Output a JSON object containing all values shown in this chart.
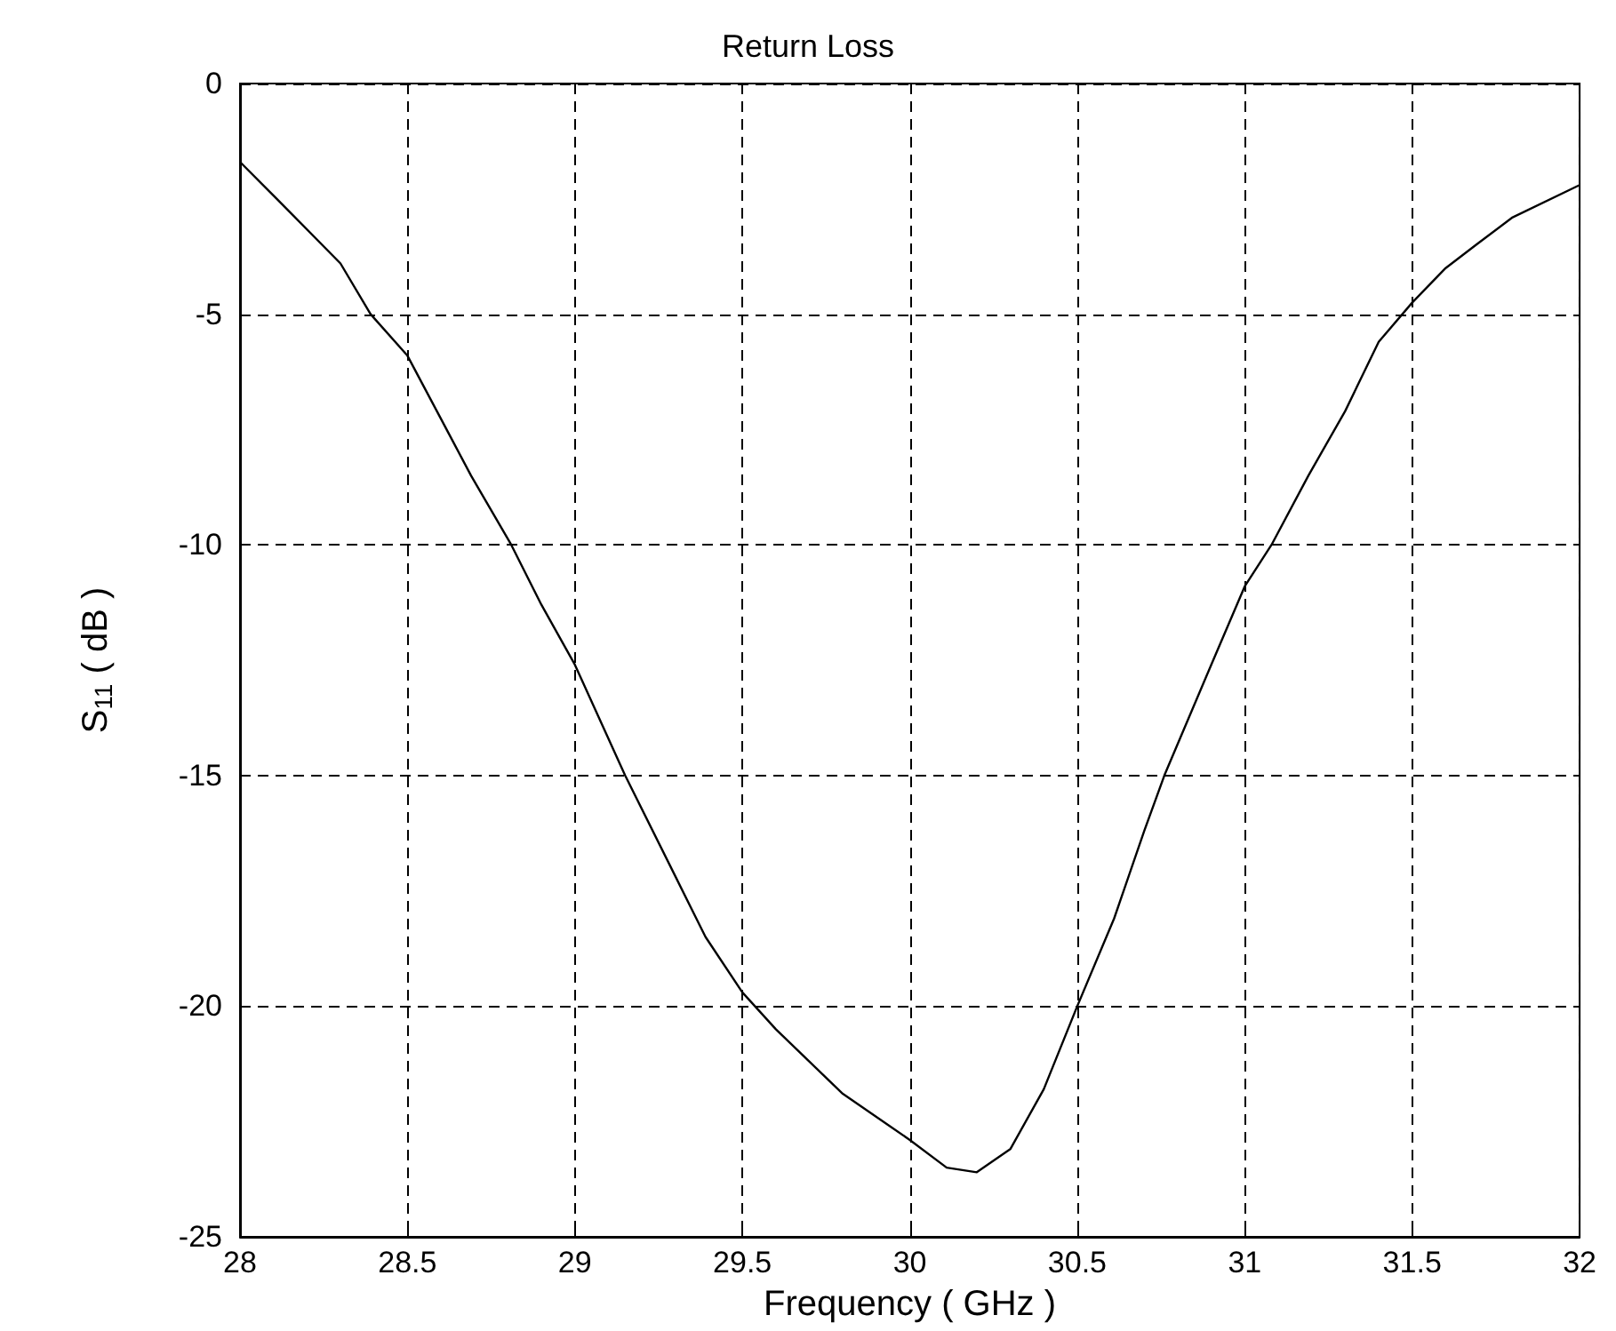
{
  "chart_data": {
    "type": "line",
    "title": "Return Loss",
    "xlabel": "Frequency ( GHz )",
    "ylabel": "S$_{11}$ ( dB )",
    "series": [
      {
        "color": "#000000",
        "x": [
          28.0,
          28.11,
          28.3,
          28.39,
          28.5,
          28.69,
          28.81,
          28.9,
          29.0,
          29.15,
          29.39,
          29.5,
          29.6,
          29.8,
          30.0,
          30.11,
          30.2,
          30.3,
          30.4,
          30.5,
          30.61,
          30.7,
          30.76,
          30.9,
          31.0,
          31.08,
          31.19,
          31.3,
          31.4,
          31.5,
          31.6,
          31.69,
          31.8,
          32.0
        ],
        "values": [
          -1.7,
          -2.5,
          -3.9,
          -5.0,
          -5.9,
          -8.5,
          -10.0,
          -11.3,
          -12.6,
          -15.0,
          -18.5,
          -19.7,
          -20.5,
          -21.9,
          -22.9,
          -23.5,
          -23.6,
          -23.1,
          -21.8,
          -20.0,
          -18.1,
          -16.2,
          -15.0,
          -12.6,
          -10.9,
          -10.0,
          -8.5,
          -7.1,
          -5.6,
          -4.75,
          -4.0,
          -3.5,
          -2.9,
          -2.2
        ]
      }
    ],
    "xlim": [
      28,
      32
    ],
    "xticks": [
      28,
      28.5,
      29,
      29.5,
      30,
      30.5,
      31,
      31.5,
      32
    ],
    "ylim": [
      -25,
      0
    ],
    "yticks": [
      -25,
      -20,
      -15,
      -10,
      -5,
      0
    ],
    "grid": true,
    "marker": "none",
    "line_style": "solid"
  }
}
